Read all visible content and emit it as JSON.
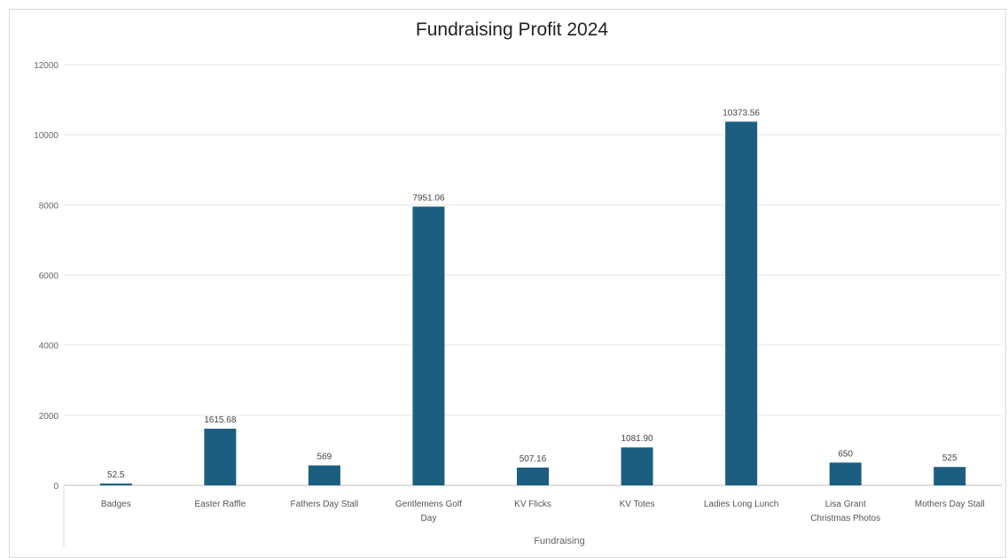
{
  "chart_data": {
    "type": "bar",
    "title": "Fundraising Profit 2024",
    "xlabel": "Fundraising",
    "ylabel": "",
    "ylim": [
      0,
      12000
    ],
    "yticks": [
      0,
      2000,
      4000,
      6000,
      8000,
      10000,
      12000
    ],
    "grid": true,
    "categories": [
      [
        "Badges"
      ],
      [
        "Easter Raffle"
      ],
      [
        "Fathers Day Stall"
      ],
      [
        "Gentlemens Golf",
        "Day"
      ],
      [
        "KV Flicks"
      ],
      [
        "KV Totes"
      ],
      [
        "Ladies Long Lunch"
      ],
      [
        "Lisa Grant",
        "Christmas Photos"
      ],
      [
        "Mothers Day Stall"
      ]
    ],
    "values": [
      52.5,
      1615.68,
      569,
      7951.06,
      507.16,
      1081.9,
      10373.56,
      650,
      525
    ],
    "data_labels": [
      "52.5",
      "1615.68",
      "569",
      "7951.06",
      "507.16",
      "1081.90",
      "10373.56",
      "650",
      "525"
    ],
    "bar_color": "#1b5e80"
  }
}
